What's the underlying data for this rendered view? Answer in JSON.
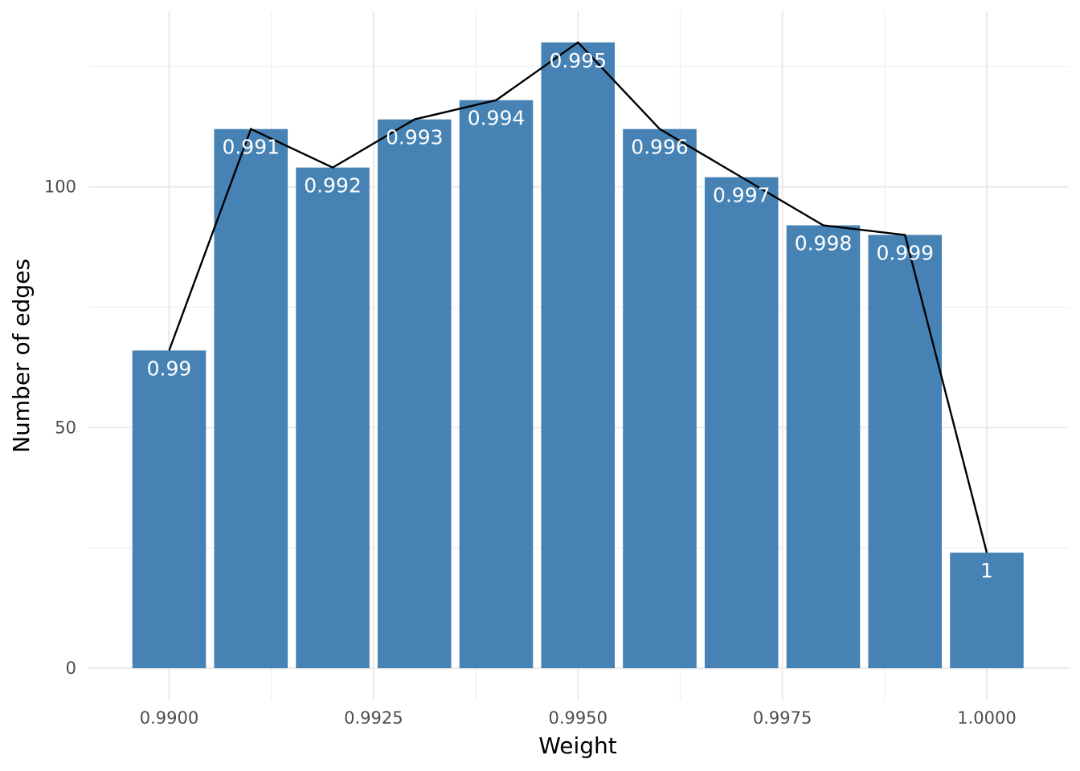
{
  "chart_data": {
    "type": "bar",
    "title": "",
    "xlabel": "Weight",
    "ylabel": "Number of edges",
    "x": [
      0.99,
      0.991,
      0.992,
      0.993,
      0.994,
      0.995,
      0.996,
      0.997,
      0.998,
      0.999,
      1.0
    ],
    "values": [
      66,
      112,
      104,
      114,
      118,
      130,
      112,
      102,
      92,
      90,
      24
    ],
    "bar_labels": [
      "0.99",
      "0.991",
      "0.992",
      "0.993",
      "0.994",
      "0.995",
      "0.996",
      "0.997",
      "0.998",
      "0.999",
      "1"
    ],
    "overlay_line": {
      "values": [
        66,
        112,
        104,
        114,
        118,
        130,
        112,
        102,
        92,
        90,
        24
      ],
      "color": "#000000"
    },
    "xlim": [
      0.9895,
      1.0005
    ],
    "ylim": [
      0,
      137
    ],
    "x_ticks": [
      0.99,
      0.9925,
      0.995,
      0.9975,
      1.0
    ],
    "x_tick_labels": [
      "0.9900",
      "0.9925",
      "0.9950",
      "0.9975",
      "1.0000"
    ],
    "y_ticks": [
      0,
      50,
      100
    ],
    "y_tick_labels": [
      "0",
      "50",
      "100"
    ],
    "grid": true,
    "legend": "none",
    "colors": {
      "bar": "#4682B4",
      "line": "#000000",
      "grid": "#EBEBEB",
      "background": "#FFFFFF"
    }
  }
}
